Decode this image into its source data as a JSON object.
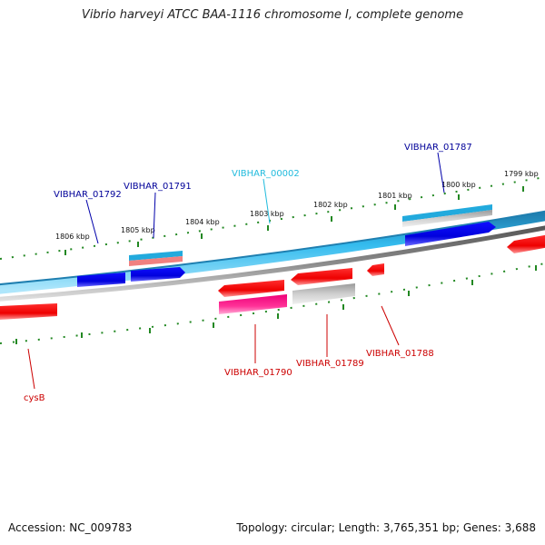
{
  "title": "Vibrio harveyi ATCC BAA-1116 chromosome I, complete genome",
  "footer": {
    "accession": "Accession: NC_009783",
    "summary": "Topology: circular; Length: 3,765,351 bp; Genes: 3,688"
  },
  "colors": {
    "forward_track": "#33bbee",
    "forward_gene": "#0000dd",
    "reverse_track": "#888888",
    "reverse_gene": "#ee0000",
    "tick": "#228822",
    "label_forward_a": "#000099",
    "label_forward_b": "#22bbdd",
    "label_reverse": "#cc0000"
  },
  "scale_labels": [
    {
      "text": "1806 kbp"
    },
    {
      "text": "1805 kbp"
    },
    {
      "text": "1804 kbp"
    },
    {
      "text": "1803 kbp"
    },
    {
      "text": "1802 kbp"
    },
    {
      "text": "1801 kbp"
    },
    {
      "text": "1800 kbp"
    },
    {
      "text": "1799 kbp"
    }
  ],
  "gene_labels": [
    {
      "text": "VIBHAR_01792",
      "strand": "forward"
    },
    {
      "text": "VIBHAR_01791",
      "strand": "forward"
    },
    {
      "text": "VIBHAR_00002",
      "strand": "forward-rna"
    },
    {
      "text": "VIBHAR_01787",
      "strand": "forward"
    },
    {
      "text": "cysB",
      "strand": "reverse"
    },
    {
      "text": "VIBHAR_01790",
      "strand": "reverse"
    },
    {
      "text": "VIBHAR_01789",
      "strand": "reverse"
    },
    {
      "text": "VIBHAR_01788",
      "strand": "reverse"
    }
  ]
}
